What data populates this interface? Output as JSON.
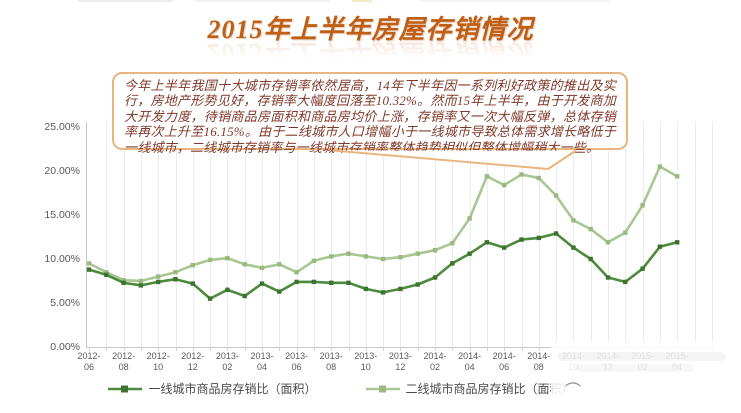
{
  "title": {
    "text": "2015年上半年房屋存销情况"
  },
  "callout": {
    "text": "今年上半年我国十大城市存销率依然居高，14年下半年因一系列利好政策的推出及实行，房地产形势见好，存销率大幅度回落至10.32%。然而15年上半年，由于开发商加大开发力度，待销商品房面积和商品房均价上涨，存销率又一次大幅反弹，总体存销率再次上升至16.15%。由于二线城市人口增幅小于一线城市导致总体需求增长略低于一线城市，二线城市存销率与一线城市存销率整体趋势相似但整体增幅稍大一些。"
  },
  "chart_data": {
    "type": "line",
    "title": "2015年上半年房屋存销情况",
    "x": [
      "2012-06",
      "2012-07",
      "2012-08",
      "2012-09",
      "2012-10",
      "2012-11",
      "2012-12",
      "2013-01",
      "2013-02",
      "2013-03",
      "2013-04",
      "2013-05",
      "2013-06",
      "2013-07",
      "2013-08",
      "2013-09",
      "2013-10",
      "2013-11",
      "2013-12",
      "2014-01",
      "2014-02",
      "2014-03",
      "2014-04",
      "2014-05",
      "2014-06",
      "2014-07",
      "2014-08",
      "2014-09",
      "2014-10",
      "2014-11",
      "2014-12",
      "2015-01",
      "2015-02",
      "2015-03",
      "2015-04"
    ],
    "x_tick_labels": [
      [
        "2012-",
        "06"
      ],
      [
        "2012-",
        "08"
      ],
      [
        "2012-",
        "10"
      ],
      [
        "2012-",
        "12"
      ],
      [
        "2013-",
        "02"
      ],
      [
        "2013-",
        "04"
      ],
      [
        "2013-",
        "06"
      ],
      [
        "2013-",
        "08"
      ],
      [
        "2013-",
        "10"
      ],
      [
        "2013-",
        "12"
      ],
      [
        "2014-",
        "02"
      ],
      [
        "2014-",
        "04"
      ],
      [
        "2014-",
        "06"
      ],
      [
        "2014-",
        "08"
      ],
      [
        "2014-",
        "10"
      ],
      [
        "2014-",
        "12"
      ],
      [
        "2015-",
        "02"
      ],
      [
        "2015-",
        "04"
      ]
    ],
    "series": [
      {
        "name": "一线城市商品房存销比（面积）",
        "color": "#4e8a3c",
        "marker_color": "#3d7230",
        "values": [
          8.8,
          8.2,
          7.3,
          7.0,
          7.4,
          7.7,
          7.2,
          5.5,
          6.5,
          5.8,
          7.2,
          6.3,
          7.4,
          7.4,
          7.3,
          7.3,
          6.6,
          6.2,
          6.6,
          7.1,
          7.9,
          9.5,
          10.6,
          11.9,
          11.3,
          12.2,
          12.4,
          12.9,
          11.3,
          10.0,
          7.9,
          7.4,
          8.9,
          11.4,
          11.9
        ]
      },
      {
        "name": "二线城市商品房存销比（面积）",
        "color": "#a9c693",
        "marker_color": "#9ab97f",
        "values": [
          9.5,
          8.5,
          7.6,
          7.5,
          8.0,
          8.5,
          9.3,
          9.9,
          10.1,
          9.4,
          9.0,
          9.4,
          8.5,
          9.8,
          10.3,
          10.6,
          10.3,
          10.0,
          10.2,
          10.6,
          11.0,
          11.8,
          14.6,
          19.4,
          18.4,
          19.6,
          19.2,
          17.2,
          14.4,
          13.4,
          11.9,
          13.0,
          16.1,
          20.5,
          19.4
        ]
      }
    ],
    "ylim": [
      0,
      25
    ],
    "y_ticks": [
      "0.00%",
      "5.00%",
      "10.00%",
      "15.00%",
      "20.00%",
      "25.00%"
    ],
    "grid": "vertical-only",
    "legend_position": "bottom"
  },
  "artifacts": {
    "squiggle": "⌒"
  },
  "colors": {
    "title": "#c05f14",
    "callout_border": "#e9b57f",
    "callout_text": "#80392b",
    "axis_text": "#595959",
    "gridline": "#ececec",
    "axis_line": "#c9c9c9"
  }
}
